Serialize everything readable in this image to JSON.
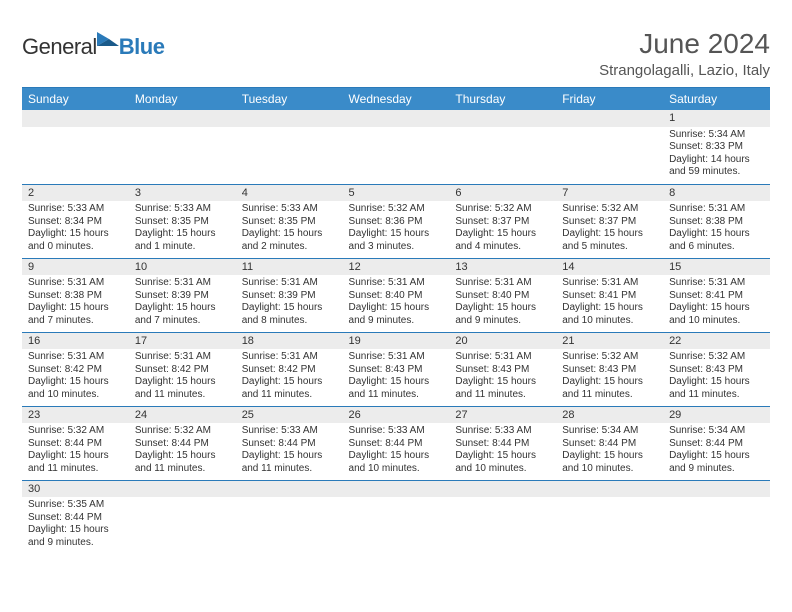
{
  "logo": {
    "general": "General",
    "blue": "Blue"
  },
  "title": "June 2024",
  "location": "Strangolagalli, Lazio, Italy",
  "weekdays": [
    "Sunday",
    "Monday",
    "Tuesday",
    "Wednesday",
    "Thursday",
    "Friday",
    "Saturday"
  ],
  "startBlank": 6,
  "colors": {
    "header_bg": "#3a8bc9",
    "header_rule": "#2a7ab9",
    "daynum_bg": "#ececec",
    "text": "#333333",
    "title_text": "#555555"
  },
  "days": [
    {
      "n": "1",
      "sunrise": "Sunrise: 5:34 AM",
      "sunset": "Sunset: 8:33 PM",
      "daylight": "Daylight: 14 hours and 59 minutes."
    },
    {
      "n": "2",
      "sunrise": "Sunrise: 5:33 AM",
      "sunset": "Sunset: 8:34 PM",
      "daylight": "Daylight: 15 hours and 0 minutes."
    },
    {
      "n": "3",
      "sunrise": "Sunrise: 5:33 AM",
      "sunset": "Sunset: 8:35 PM",
      "daylight": "Daylight: 15 hours and 1 minute."
    },
    {
      "n": "4",
      "sunrise": "Sunrise: 5:33 AM",
      "sunset": "Sunset: 8:35 PM",
      "daylight": "Daylight: 15 hours and 2 minutes."
    },
    {
      "n": "5",
      "sunrise": "Sunrise: 5:32 AM",
      "sunset": "Sunset: 8:36 PM",
      "daylight": "Daylight: 15 hours and 3 minutes."
    },
    {
      "n": "6",
      "sunrise": "Sunrise: 5:32 AM",
      "sunset": "Sunset: 8:37 PM",
      "daylight": "Daylight: 15 hours and 4 minutes."
    },
    {
      "n": "7",
      "sunrise": "Sunrise: 5:32 AM",
      "sunset": "Sunset: 8:37 PM",
      "daylight": "Daylight: 15 hours and 5 minutes."
    },
    {
      "n": "8",
      "sunrise": "Sunrise: 5:31 AM",
      "sunset": "Sunset: 8:38 PM",
      "daylight": "Daylight: 15 hours and 6 minutes."
    },
    {
      "n": "9",
      "sunrise": "Sunrise: 5:31 AM",
      "sunset": "Sunset: 8:38 PM",
      "daylight": "Daylight: 15 hours and 7 minutes."
    },
    {
      "n": "10",
      "sunrise": "Sunrise: 5:31 AM",
      "sunset": "Sunset: 8:39 PM",
      "daylight": "Daylight: 15 hours and 7 minutes."
    },
    {
      "n": "11",
      "sunrise": "Sunrise: 5:31 AM",
      "sunset": "Sunset: 8:39 PM",
      "daylight": "Daylight: 15 hours and 8 minutes."
    },
    {
      "n": "12",
      "sunrise": "Sunrise: 5:31 AM",
      "sunset": "Sunset: 8:40 PM",
      "daylight": "Daylight: 15 hours and 9 minutes."
    },
    {
      "n": "13",
      "sunrise": "Sunrise: 5:31 AM",
      "sunset": "Sunset: 8:40 PM",
      "daylight": "Daylight: 15 hours and 9 minutes."
    },
    {
      "n": "14",
      "sunrise": "Sunrise: 5:31 AM",
      "sunset": "Sunset: 8:41 PM",
      "daylight": "Daylight: 15 hours and 10 minutes."
    },
    {
      "n": "15",
      "sunrise": "Sunrise: 5:31 AM",
      "sunset": "Sunset: 8:41 PM",
      "daylight": "Daylight: 15 hours and 10 minutes."
    },
    {
      "n": "16",
      "sunrise": "Sunrise: 5:31 AM",
      "sunset": "Sunset: 8:42 PM",
      "daylight": "Daylight: 15 hours and 10 minutes."
    },
    {
      "n": "17",
      "sunrise": "Sunrise: 5:31 AM",
      "sunset": "Sunset: 8:42 PM",
      "daylight": "Daylight: 15 hours and 11 minutes."
    },
    {
      "n": "18",
      "sunrise": "Sunrise: 5:31 AM",
      "sunset": "Sunset: 8:42 PM",
      "daylight": "Daylight: 15 hours and 11 minutes."
    },
    {
      "n": "19",
      "sunrise": "Sunrise: 5:31 AM",
      "sunset": "Sunset: 8:43 PM",
      "daylight": "Daylight: 15 hours and 11 minutes."
    },
    {
      "n": "20",
      "sunrise": "Sunrise: 5:31 AM",
      "sunset": "Sunset: 8:43 PM",
      "daylight": "Daylight: 15 hours and 11 minutes."
    },
    {
      "n": "21",
      "sunrise": "Sunrise: 5:32 AM",
      "sunset": "Sunset: 8:43 PM",
      "daylight": "Daylight: 15 hours and 11 minutes."
    },
    {
      "n": "22",
      "sunrise": "Sunrise: 5:32 AM",
      "sunset": "Sunset: 8:43 PM",
      "daylight": "Daylight: 15 hours and 11 minutes."
    },
    {
      "n": "23",
      "sunrise": "Sunrise: 5:32 AM",
      "sunset": "Sunset: 8:44 PM",
      "daylight": "Daylight: 15 hours and 11 minutes."
    },
    {
      "n": "24",
      "sunrise": "Sunrise: 5:32 AM",
      "sunset": "Sunset: 8:44 PM",
      "daylight": "Daylight: 15 hours and 11 minutes."
    },
    {
      "n": "25",
      "sunrise": "Sunrise: 5:33 AM",
      "sunset": "Sunset: 8:44 PM",
      "daylight": "Daylight: 15 hours and 11 minutes."
    },
    {
      "n": "26",
      "sunrise": "Sunrise: 5:33 AM",
      "sunset": "Sunset: 8:44 PM",
      "daylight": "Daylight: 15 hours and 10 minutes."
    },
    {
      "n": "27",
      "sunrise": "Sunrise: 5:33 AM",
      "sunset": "Sunset: 8:44 PM",
      "daylight": "Daylight: 15 hours and 10 minutes."
    },
    {
      "n": "28",
      "sunrise": "Sunrise: 5:34 AM",
      "sunset": "Sunset: 8:44 PM",
      "daylight": "Daylight: 15 hours and 10 minutes."
    },
    {
      "n": "29",
      "sunrise": "Sunrise: 5:34 AM",
      "sunset": "Sunset: 8:44 PM",
      "daylight": "Daylight: 15 hours and 9 minutes."
    },
    {
      "n": "30",
      "sunrise": "Sunrise: 5:35 AM",
      "sunset": "Sunset: 8:44 PM",
      "daylight": "Daylight: 15 hours and 9 minutes."
    }
  ]
}
